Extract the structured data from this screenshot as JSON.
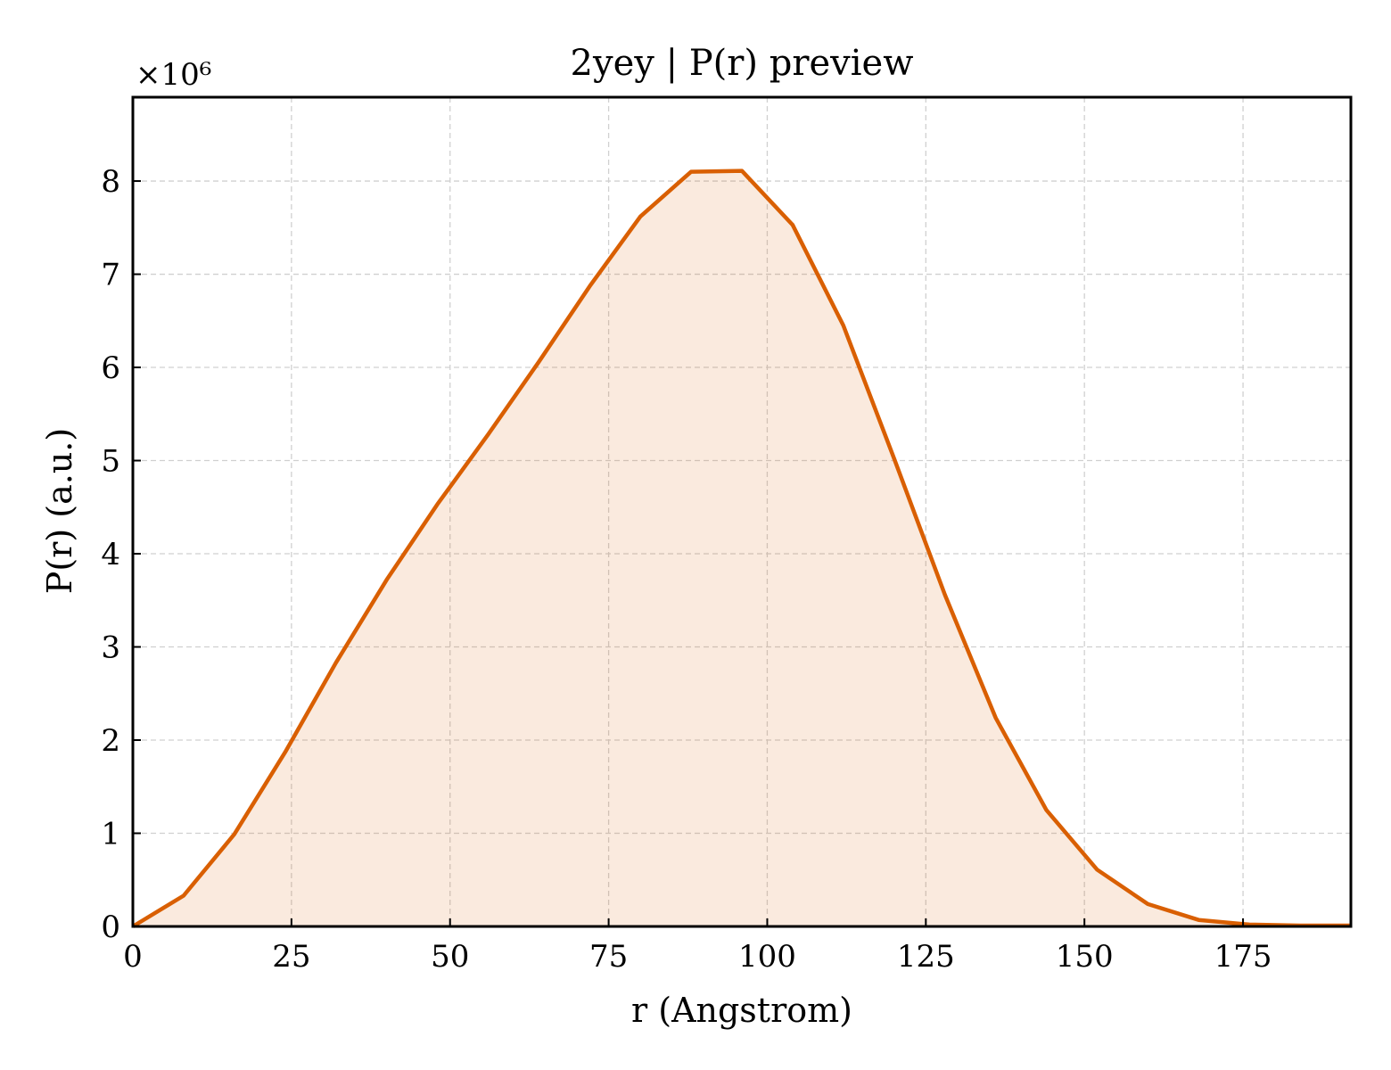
{
  "chart_data": {
    "type": "area",
    "title": "2yey | P(r) preview",
    "xlabel": "r (Angstrom)",
    "ylabel": "P(r) (a.u.)",
    "y_multiplier_label": "×10⁶",
    "xlim": [
      0,
      192
    ],
    "ylim": [
      0,
      8.9
    ],
    "grid": true,
    "x_ticks": [
      0,
      25,
      50,
      75,
      100,
      125,
      150,
      175
    ],
    "x_tick_labels": [
      "0",
      "25",
      "50",
      "75",
      "100",
      "125",
      "150",
      "175"
    ],
    "y_ticks": [
      0,
      1,
      2,
      3,
      4,
      5,
      6,
      7,
      8
    ],
    "y_tick_labels": [
      "0",
      "1",
      "2",
      "3",
      "4",
      "5",
      "6",
      "7",
      "8"
    ],
    "series": [
      {
        "color": "#d95f02",
        "fill_color": "#d95f02",
        "fill_opacity": 0.13,
        "x": [
          0,
          8,
          16,
          24,
          32,
          40,
          48,
          56,
          64,
          72,
          80,
          88,
          96,
          104,
          112,
          120,
          128,
          136,
          144,
          152,
          160,
          168,
          176,
          184,
          192
        ],
        "y": [
          0.0,
          0.33,
          0.99,
          1.87,
          2.83,
          3.72,
          4.53,
          5.28,
          6.06,
          6.87,
          7.62,
          8.1,
          8.11,
          7.53,
          6.45,
          5.02,
          3.56,
          2.24,
          1.25,
          0.61,
          0.24,
          0.07,
          0.02,
          0.01,
          0.01
        ]
      }
    ]
  }
}
